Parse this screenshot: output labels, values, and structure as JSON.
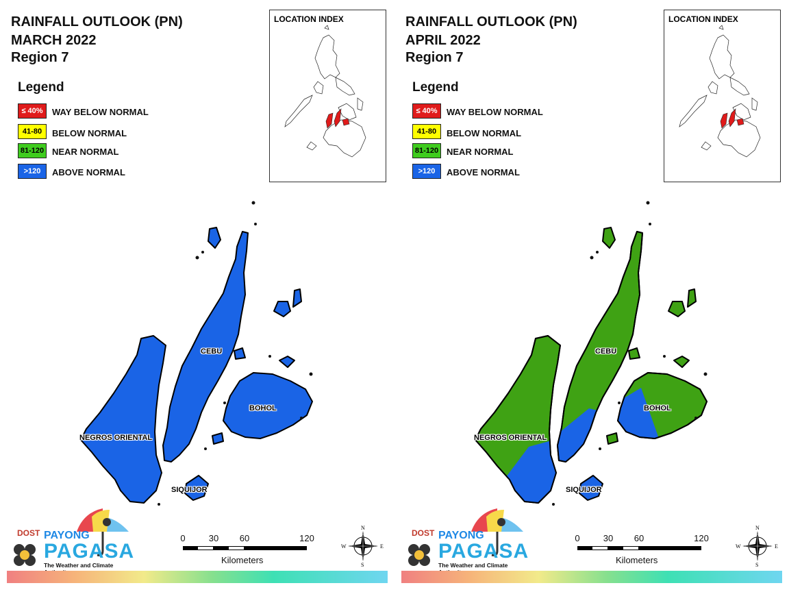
{
  "panels": [
    {
      "title_line1": "RAINFALL OUTLOOK (PN)",
      "title_line2": "MARCH 2022",
      "title_line3": "Region 7",
      "fill_colors": {
        "cebu": "#1a64e6",
        "negros": "#1a64e6",
        "bohol": "#1a64e6",
        "siquijor": "#1a64e6"
      }
    },
    {
      "title_line1": "RAINFALL OUTLOOK (PN)",
      "title_line2": "APRIL 2022",
      "title_line3": "Region 7",
      "fill_colors": {
        "cebu": "#3fa214",
        "negros": "#3fa214",
        "bohol": "#3fa214",
        "siquijor": "#1a64e6"
      }
    }
  ],
  "legend": {
    "title": "Legend",
    "items": [
      {
        "range": "≤ 40%",
        "label": "WAY BELOW NORMAL",
        "color": "#e01b1b",
        "text_color": "#ffffff"
      },
      {
        "range": "41-80",
        "label": "BELOW NORMAL",
        "color": "#ffff00",
        "text_color": "#000000"
      },
      {
        "range": "81-120",
        "label": "NEAR NORMAL",
        "color": "#3fcc1e",
        "text_color": "#000000"
      },
      {
        "range": ">120",
        "label": "ABOVE NORMAL",
        "color": "#1a64e6",
        "text_color": "#ffffff"
      }
    ]
  },
  "location_index": {
    "title": "LOCATION INDEX"
  },
  "places": {
    "cebu": "CEBU",
    "bohol": "BOHOL",
    "negros": "NEGROS ORIENTAL",
    "siquijor": "SIQUIJOR"
  },
  "logo": {
    "dost": "DOST",
    "payong": "PAYONG",
    "pagasa": "PAGASA",
    "tagline": "The Weather and Climate Authority"
  },
  "scale_bar": {
    "ticks": [
      "0",
      "30",
      "60",
      "120"
    ],
    "unit": "Kilometers"
  },
  "compass": {
    "n": "N",
    "s": "S",
    "e": "E",
    "w": "W"
  }
}
